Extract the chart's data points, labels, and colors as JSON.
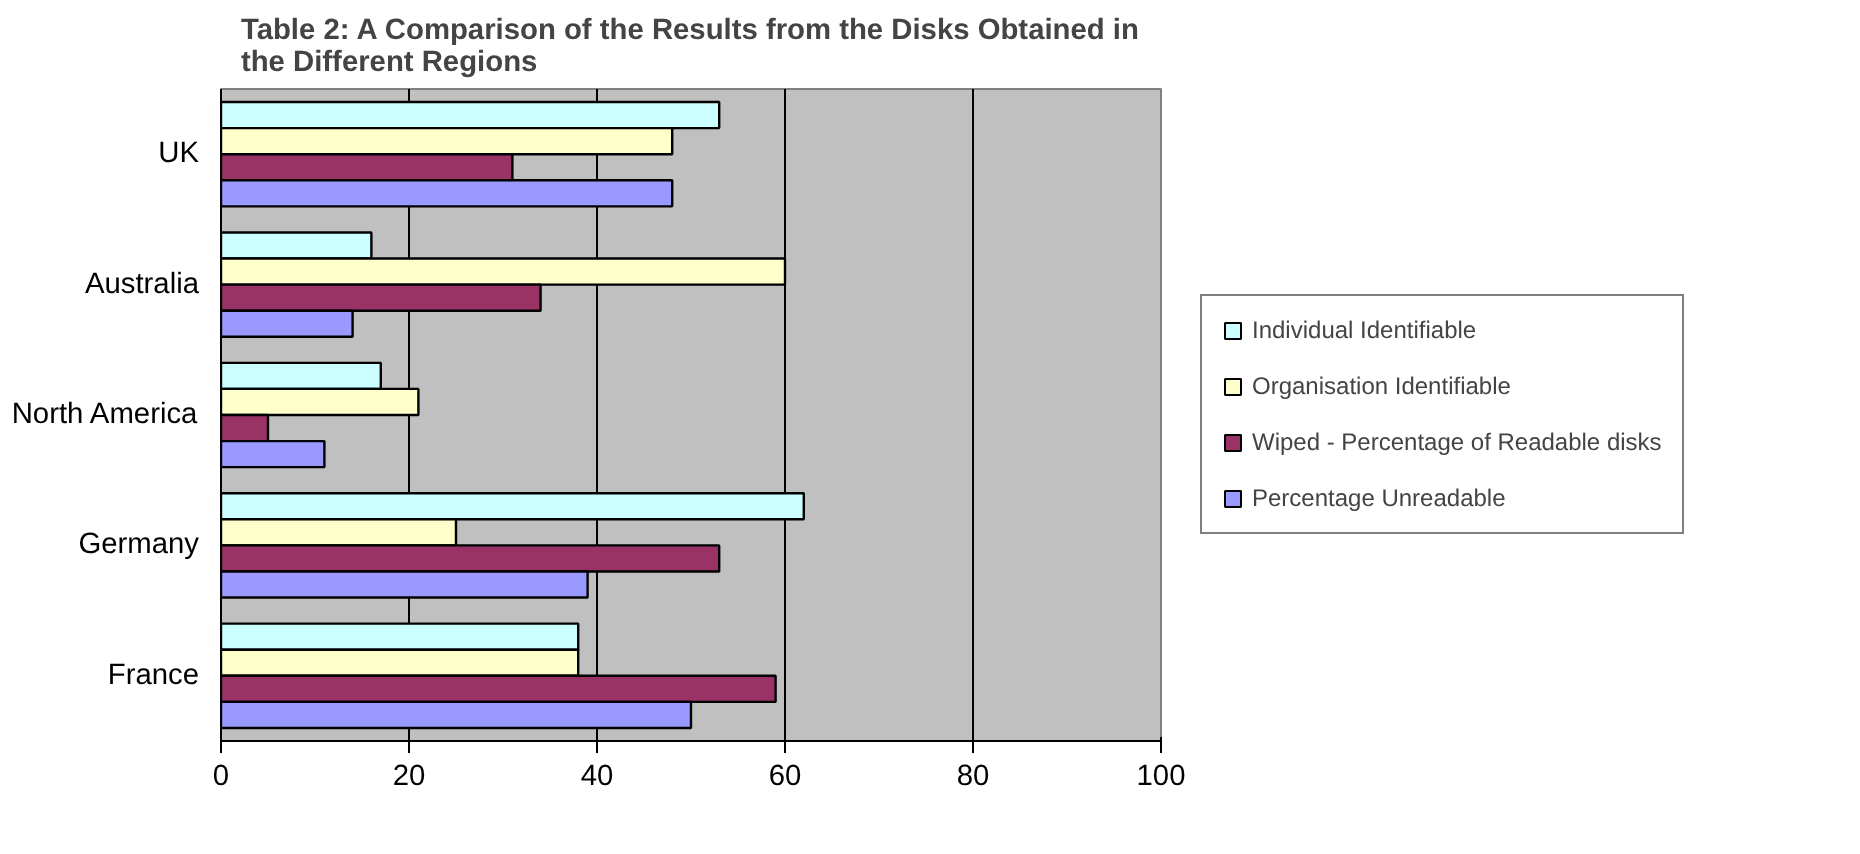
{
  "chart_data": {
    "type": "bar",
    "orientation": "horizontal",
    "title": "Table 2: A Comparison of the Results from the Disks Obtained in\nthe Different Regions",
    "categories": [
      "UK",
      "Australia",
      "North America",
      "Germany",
      "France"
    ],
    "series": [
      {
        "name": "Individual Identifiable",
        "color": "#ccffff",
        "values": [
          53,
          16,
          17,
          62,
          38
        ]
      },
      {
        "name": "Organisation Identifiable",
        "color": "#ffffcc",
        "values": [
          48,
          60,
          21,
          25,
          38
        ]
      },
      {
        "name": "Wiped - Percentage of Readable disks",
        "color": "#993366",
        "values": [
          31,
          34,
          5,
          53,
          59
        ]
      },
      {
        "name": "Percentage Unreadable",
        "color": "#9999ff",
        "values": [
          48,
          14,
          11,
          39,
          50
        ]
      }
    ],
    "xlim": [
      0,
      100
    ],
    "xticks": [
      0,
      20,
      40,
      60,
      80,
      100
    ],
    "grid": "x",
    "legend": "right"
  }
}
